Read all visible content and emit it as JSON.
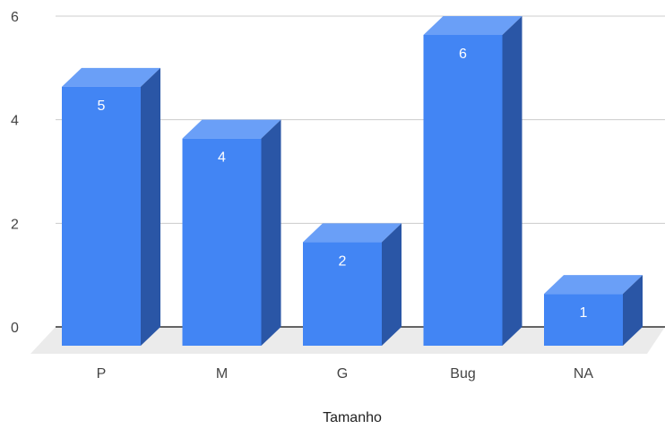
{
  "chart_data": {
    "type": "bar",
    "style": "3d-column",
    "categories": [
      "P",
      "M",
      "G",
      "Bug",
      "NA"
    ],
    "values": [
      5,
      4,
      2,
      6,
      1
    ],
    "data_labels": [
      "5",
      "4",
      "2",
      "6",
      "1"
    ],
    "xlabel": "Tamanho",
    "ylabel": "",
    "ylim": [
      0,
      6
    ],
    "yticks": [
      0,
      2,
      4,
      6
    ],
    "ytick_labels": [
      "0",
      "2",
      "4",
      "6"
    ],
    "grid": true,
    "legend": "none",
    "colors": {
      "front": "#4285f4",
      "top": "#6a9ff7",
      "side": "#2a56a6",
      "floor": "#ebebeb",
      "grid": "#cccccc",
      "baseline": "#333333"
    }
  }
}
